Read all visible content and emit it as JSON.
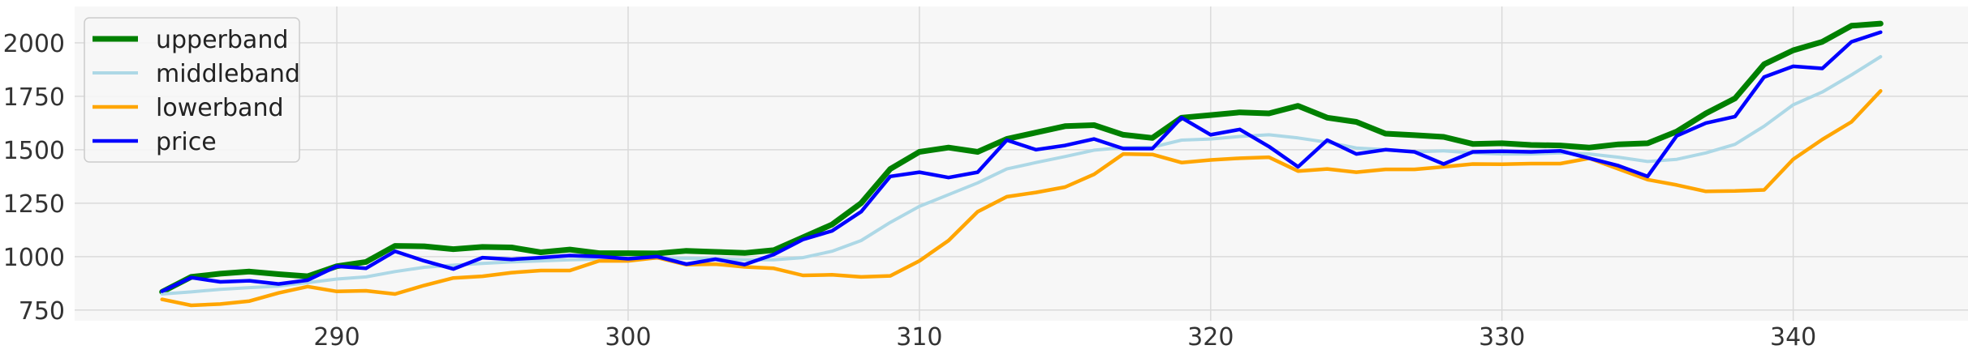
{
  "chart_data": {
    "type": "line",
    "title": "",
    "xlabel": "",
    "ylabel": "",
    "xlim": [
      281,
      346
    ],
    "ylim": [
      700,
      2170
    ],
    "xticks": [
      290,
      300,
      310,
      320,
      330,
      340
    ],
    "yticks": [
      750,
      1000,
      1250,
      1500,
      1750,
      2000
    ],
    "xtick_labels": [
      "290",
      "300",
      "310",
      "320",
      "330",
      "340"
    ],
    "ytick_labels": [
      "750",
      "1000",
      "1250",
      "1500",
      "1750",
      "2000"
    ],
    "grid": true,
    "legend_position": "top-left",
    "x": [
      284,
      285,
      286,
      287,
      288,
      289,
      290,
      291,
      292,
      293,
      294,
      295,
      296,
      297,
      298,
      299,
      300,
      301,
      302,
      303,
      304,
      305,
      306,
      307,
      308,
      309,
      310,
      311,
      312,
      313,
      314,
      315,
      316,
      317,
      318,
      319,
      320,
      321,
      322,
      323,
      324,
      325,
      326,
      327,
      328,
      329,
      330,
      331,
      332,
      333,
      334,
      335,
      336,
      337,
      338,
      339,
      340,
      341,
      342,
      343
    ],
    "series": [
      {
        "name": "upperband",
        "color": "#008000",
        "values": [
          835,
          905,
          920,
          930,
          918,
          908,
          955,
          975,
          1050,
          1048,
          1035,
          1045,
          1043,
          1020,
          1033,
          1016,
          1016,
          1015,
          1027,
          1022,
          1017,
          1030,
          1090,
          1150,
          1250,
          1410,
          1490,
          1510,
          1490,
          1550,
          1580,
          1610,
          1615,
          1570,
          1555,
          1650,
          1662,
          1675,
          1670,
          1705,
          1650,
          1630,
          1575,
          1568,
          1560,
          1527,
          1530,
          1522,
          1520,
          1510,
          1525,
          1530,
          1585,
          1670,
          1740,
          1900,
          1965,
          2005,
          2080,
          2090
        ]
      },
      {
        "name": "middleband",
        "color": "#add8e6",
        "values": [
          825,
          835,
          847,
          855,
          862,
          878,
          895,
          905,
          930,
          950,
          960,
          968,
          975,
          980,
          985,
          988,
          990,
          992,
          993,
          990,
          985,
          985,
          995,
          1025,
          1075,
          1160,
          1235,
          1290,
          1345,
          1410,
          1440,
          1468,
          1498,
          1510,
          1512,
          1545,
          1550,
          1562,
          1570,
          1555,
          1535,
          1508,
          1500,
          1490,
          1495,
          1485,
          1480,
          1480,
          1485,
          1480,
          1465,
          1445,
          1455,
          1485,
          1525,
          1610,
          1710,
          1770,
          1850,
          1935
        ]
      },
      {
        "name": "lowerband",
        "color": "#ffa500",
        "values": [
          800,
          772,
          778,
          792,
          830,
          860,
          837,
          840,
          825,
          865,
          900,
          908,
          925,
          935,
          935,
          980,
          980,
          995,
          962,
          965,
          952,
          945,
          912,
          915,
          905,
          910,
          980,
          1075,
          1210,
          1280,
          1300,
          1325,
          1385,
          1480,
          1478,
          1440,
          1452,
          1460,
          1465,
          1400,
          1410,
          1395,
          1408,
          1408,
          1420,
          1433,
          1432,
          1435,
          1435,
          1460,
          1410,
          1360,
          1335,
          1305,
          1307,
          1312,
          1455,
          1548,
          1630,
          1775
        ]
      },
      {
        "name": "price",
        "color": "#0000ff",
        "values": [
          838,
          902,
          882,
          887,
          872,
          890,
          955,
          945,
          1025,
          980,
          942,
          995,
          987,
          995,
          1005,
          1000,
          990,
          1000,
          965,
          988,
          963,
          1010,
          1080,
          1120,
          1210,
          1375,
          1395,
          1370,
          1395,
          1545,
          1500,
          1520,
          1550,
          1505,
          1505,
          1650,
          1570,
          1595,
          1515,
          1420,
          1545,
          1480,
          1500,
          1490,
          1433,
          1490,
          1493,
          1490,
          1495,
          1460,
          1425,
          1375,
          1565,
          1625,
          1655,
          1840,
          1890,
          1880,
          2005,
          2050
        ]
      }
    ]
  }
}
